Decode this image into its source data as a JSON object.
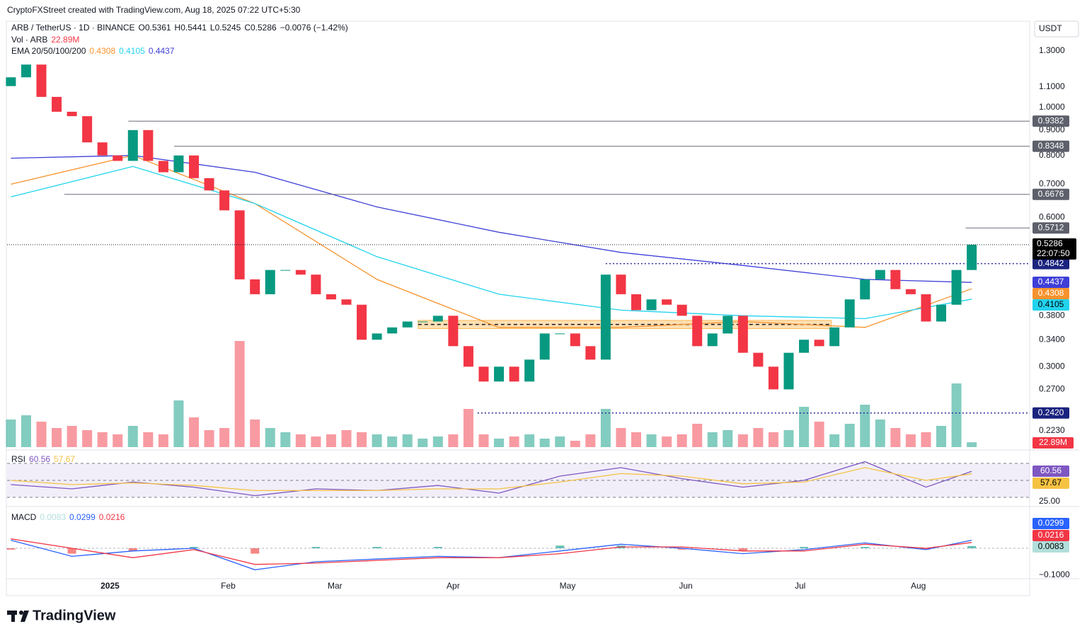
{
  "header": {
    "credit": "CryptoFXStreet created with TradingView.com, Aug 18, 2025 07:22 UTC+5:30",
    "symbol": "ARB / TetherUS · 1D · BINANCE",
    "open": "O0.5361",
    "high": "H0.5441",
    "low": "L0.5245",
    "close": "C0.5286",
    "change": "−0.0076 (−1.42%)",
    "currency": "USDT",
    "logo": "TradingView"
  },
  "chart_data": {
    "type": "candlestick",
    "log_scale": true,
    "xlim": [
      -0.25,
      66.8
    ],
    "ylim": [
      0.2065,
      1.492
    ],
    "xticks": [
      {
        "value": 6.5,
        "label": "2025"
      },
      {
        "value": 14.25,
        "label": "Feb"
      },
      {
        "value": 21.25,
        "label": "Mar"
      },
      {
        "value": 29,
        "label": "Apr"
      },
      {
        "value": 36.5,
        "label": "May"
      },
      {
        "value": 44.25,
        "label": "Jun"
      },
      {
        "value": 51.75,
        "label": "Jul"
      },
      {
        "value": 59.5,
        "label": "Aug"
      }
    ],
    "yticks": [
      {
        "value": 1.3,
        "label": "1.3000"
      },
      {
        "value": 1.1,
        "label": "1.1000"
      },
      {
        "value": 1.0,
        "label": "1.0000"
      },
      {
        "value": 0.9,
        "label": "0.9000"
      },
      {
        "value": 0.8,
        "label": "0.8000"
      },
      {
        "value": 0.7,
        "label": "0.7000"
      },
      {
        "value": 0.6,
        "label": "0.6000"
      },
      {
        "value": 0.38,
        "label": "0.3800"
      },
      {
        "value": 0.34,
        "label": "0.3400"
      },
      {
        "value": 0.3,
        "label": "0.3000"
      },
      {
        "value": 0.27,
        "label": "0.2700"
      },
      {
        "value": 0.223,
        "label": "0.2230"
      }
    ],
    "up_color": "#089981",
    "down_color": "#f23645",
    "values": [
      1.15,
      1.22,
      1.05,
      0.98,
      0.96,
      0.85,
      0.8,
      0.78,
      0.9,
      0.78,
      0.74,
      0.8,
      0.72,
      0.68,
      0.62,
      0.45,
      0.42,
      0.47,
      0.47,
      0.46,
      0.42,
      0.41,
      0.4,
      0.34,
      0.35,
      0.36,
      0.37,
      0.37,
      0.38,
      0.33,
      0.3,
      0.28,
      0.3,
      0.28,
      0.31,
      0.35,
      0.35,
      0.33,
      0.31,
      0.46,
      0.42,
      0.39,
      0.41,
      0.4,
      0.38,
      0.33,
      0.35,
      0.38,
      0.32,
      0.3,
      0.27,
      0.32,
      0.34,
      0.33,
      0.36,
      0.41,
      0.45,
      0.47,
      0.43,
      0.42,
      0.37,
      0.4,
      0.47,
      0.5286
    ],
    "current": {
      "value": 0.5286,
      "countdown": "22:07:50"
    },
    "levels": [
      {
        "value": 0.9382,
        "from": 7.7,
        "color": "#5d606b",
        "style": "solid"
      },
      {
        "value": 0.8348,
        "from": 10.7,
        "color": "#5d606b",
        "style": "solid"
      },
      {
        "value": 0.6676,
        "from": 3.5,
        "color": "#5d606b",
        "style": "solid"
      },
      {
        "value": 0.5712,
        "from": 62.6,
        "color": "#5d606b",
        "style": "solid"
      },
      {
        "value": 0.4842,
        "from": 39,
        "color": "#1a237e",
        "style": "dotted"
      },
      {
        "value": {
          "value": 0.242,
          "label": "0.2420"
        },
        "from": 30.6,
        "color": "#1a237e",
        "style": "dotted"
      }
    ],
    "support_zone": {
      "x": [
        26.7,
        53.8
      ],
      "range": [
        0.358,
        0.372
      ]
    },
    "volume": {
      "name": "Vol · ARB",
      "ylim": [
        0,
        1000000000
      ],
      "value_label": "22.89M",
      "values": [
        130000000,
        150000000,
        120000000,
        90000000,
        100000000,
        80000000,
        70000000,
        60000000,
        100000000,
        70000000,
        60000000,
        220000000,
        140000000,
        80000000,
        90000000,
        500000000,
        130000000,
        90000000,
        70000000,
        60000000,
        50000000,
        60000000,
        80000000,
        70000000,
        60000000,
        50000000,
        60000000,
        40000000,
        50000000,
        60000000,
        180000000,
        60000000,
        40000000,
        50000000,
        60000000,
        40000000,
        50000000,
        30000000,
        60000000,
        180000000,
        90000000,
        70000000,
        60000000,
        50000000,
        60000000,
        110000000,
        70000000,
        80000000,
        60000000,
        90000000,
        70000000,
        80000000,
        190000000,
        120000000,
        60000000,
        110000000,
        200000000,
        130000000,
        90000000,
        60000000,
        70000000,
        100000000,
        300000000,
        22890000
      ]
    },
    "ema": {
      "name": "EMA 20/50/100/200",
      "x": [
        0,
        8,
        16,
        24,
        32,
        40,
        48,
        56,
        63
      ],
      "series": [
        {
          "color": "#f7932e",
          "values": [
            0.7,
            0.8,
            0.64,
            0.45,
            0.36,
            0.36,
            0.37,
            0.36,
            0.4308
          ]
        },
        {
          "color": "#22d3ee",
          "values": [
            0.66,
            0.76,
            0.64,
            0.5,
            0.42,
            0.39,
            0.38,
            0.375,
            0.4105
          ]
        },
        {
          "color": "#3f3fd8",
          "values": [
            0.79,
            0.8,
            0.74,
            0.63,
            0.56,
            0.51,
            0.48,
            0.45,
            0.4437
          ]
        }
      ]
    },
    "rsi": {
      "name": "RSI",
      "ylim": [
        22.5,
        82.5
      ],
      "bands": [
        70,
        50,
        30
      ],
      "yticks": [
        {
          "value": 25,
          "label": "25.00"
        }
      ],
      "x": [
        0,
        4,
        8,
        12,
        16,
        20,
        24,
        28,
        32,
        36,
        40,
        44,
        48,
        52,
        56,
        60,
        63
      ],
      "series": [
        {
          "color": "#7e57c2",
          "values": [
            45,
            40,
            48,
            42,
            32,
            40,
            38,
            44,
            35,
            55,
            65,
            52,
            42,
            50,
            72,
            42,
            60.56
          ]
        },
        {
          "color": "#f5c242",
          "values": [
            50,
            45,
            47,
            44,
            38,
            38,
            38,
            40,
            40,
            48,
            58,
            55,
            46,
            48,
            65,
            50,
            57.67
          ]
        }
      ]
    },
    "macd": {
      "name": "MACD",
      "ylim": [
        -0.1053,
        0.1447
      ],
      "yticks": [
        {
          "value": -0.1,
          "label": "−0.1000"
        }
      ],
      "x": [
        0,
        4,
        8,
        12,
        16,
        20,
        24,
        28,
        32,
        36,
        40,
        44,
        48,
        52,
        56,
        60,
        63
      ],
      "histogram": {
        "color": "#26a69a",
        "neg_color": "#ef5350",
        "label_color": "#b2dfdb",
        "values": [
          -0.005,
          -0.02,
          -0.01,
          0.005,
          -0.02,
          0.005,
          0.005,
          0.005,
          0,
          0.01,
          0.01,
          -0.005,
          -0.01,
          0.005,
          0.005,
          -0.005,
          0.0083
        ]
      },
      "series": [
        {
          "color": "#2962ff",
          "values": [
            0.03,
            -0.03,
            -0.01,
            0.0,
            -0.08,
            -0.05,
            -0.04,
            -0.03,
            -0.035,
            -0.01,
            0.015,
            0.0,
            -0.02,
            -0.005,
            0.02,
            -0.005,
            0.0299
          ]
        },
        {
          "color": "#f23645",
          "values": [
            0.035,
            0.0,
            -0.035,
            -0.005,
            -0.06,
            -0.055,
            -0.045,
            -0.035,
            -0.035,
            -0.02,
            0.005,
            0.005,
            -0.01,
            -0.01,
            0.015,
            0.0,
            0.0216
          ]
        }
      ]
    }
  }
}
